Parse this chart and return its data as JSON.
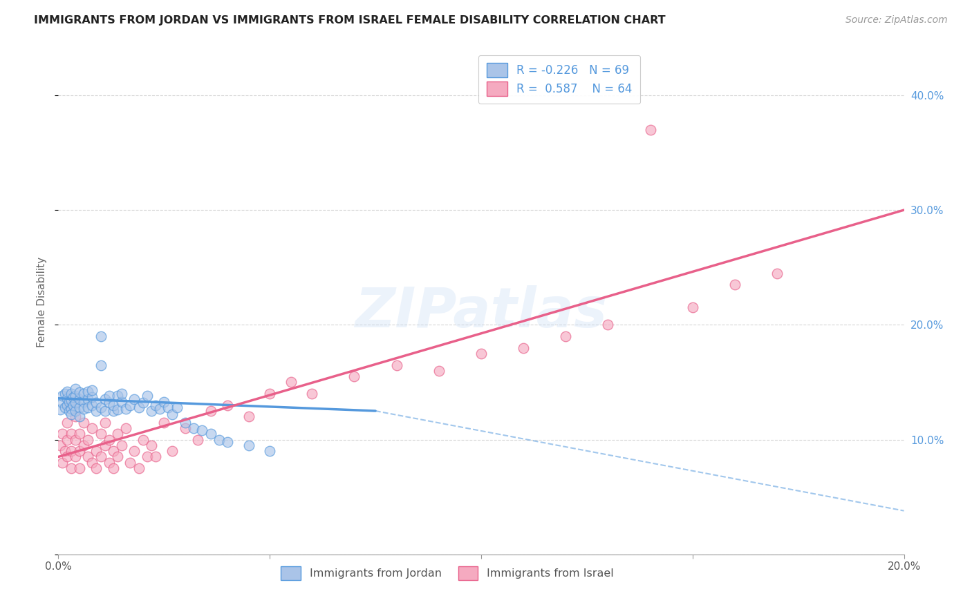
{
  "title": "IMMIGRANTS FROM JORDAN VS IMMIGRANTS FROM ISRAEL FEMALE DISABILITY CORRELATION CHART",
  "source": "Source: ZipAtlas.com",
  "ylabel": "Female Disability",
  "x_min": 0.0,
  "x_max": 0.2,
  "y_min": 0.0,
  "y_max": 0.44,
  "jordan_color": "#aac4e8",
  "israel_color": "#f5aac0",
  "jordan_line_color": "#5599dd",
  "israel_line_color": "#e8608a",
  "jordan_R": -0.226,
  "jordan_N": 69,
  "israel_R": 0.587,
  "israel_N": 64,
  "watermark": "ZIPatlas",
  "background_color": "#ffffff",
  "grid_color": "#cccccc",
  "jordan_scatter_x": [
    0.0005,
    0.001,
    0.001,
    0.0015,
    0.0015,
    0.002,
    0.002,
    0.002,
    0.0025,
    0.0025,
    0.003,
    0.003,
    0.003,
    0.003,
    0.0035,
    0.0035,
    0.004,
    0.004,
    0.004,
    0.004,
    0.005,
    0.005,
    0.005,
    0.005,
    0.006,
    0.006,
    0.006,
    0.007,
    0.007,
    0.007,
    0.008,
    0.008,
    0.008,
    0.009,
    0.009,
    0.01,
    0.01,
    0.01,
    0.011,
    0.011,
    0.012,
    0.012,
    0.013,
    0.013,
    0.014,
    0.014,
    0.015,
    0.015,
    0.016,
    0.017,
    0.018,
    0.019,
    0.02,
    0.021,
    0.022,
    0.023,
    0.024,
    0.025,
    0.026,
    0.027,
    0.028,
    0.03,
    0.032,
    0.034,
    0.036,
    0.038,
    0.04,
    0.045,
    0.05
  ],
  "jordan_scatter_y": [
    0.126,
    0.132,
    0.138,
    0.128,
    0.14,
    0.13,
    0.136,
    0.142,
    0.125,
    0.133,
    0.127,
    0.134,
    0.14,
    0.122,
    0.13,
    0.137,
    0.125,
    0.132,
    0.138,
    0.144,
    0.128,
    0.135,
    0.141,
    0.12,
    0.133,
    0.14,
    0.127,
    0.135,
    0.142,
    0.128,
    0.13,
    0.137,
    0.143,
    0.125,
    0.132,
    0.19,
    0.165,
    0.128,
    0.135,
    0.125,
    0.132,
    0.138,
    0.125,
    0.13,
    0.138,
    0.126,
    0.133,
    0.14,
    0.127,
    0.13,
    0.135,
    0.128,
    0.132,
    0.138,
    0.125,
    0.13,
    0.127,
    0.133,
    0.128,
    0.122,
    0.128,
    0.115,
    0.11,
    0.108,
    0.105,
    0.1,
    0.098,
    0.095,
    0.09
  ],
  "israel_scatter_x": [
    0.0005,
    0.001,
    0.001,
    0.0015,
    0.002,
    0.002,
    0.002,
    0.003,
    0.003,
    0.003,
    0.004,
    0.004,
    0.004,
    0.005,
    0.005,
    0.005,
    0.006,
    0.006,
    0.007,
    0.007,
    0.008,
    0.008,
    0.009,
    0.009,
    0.01,
    0.01,
    0.011,
    0.011,
    0.012,
    0.012,
    0.013,
    0.013,
    0.014,
    0.014,
    0.015,
    0.016,
    0.017,
    0.018,
    0.019,
    0.02,
    0.021,
    0.022,
    0.023,
    0.025,
    0.027,
    0.03,
    0.033,
    0.036,
    0.04,
    0.045,
    0.05,
    0.055,
    0.06,
    0.07,
    0.08,
    0.09,
    0.1,
    0.11,
    0.12,
    0.13,
    0.14,
    0.15,
    0.16,
    0.17
  ],
  "israel_scatter_y": [
    0.095,
    0.08,
    0.105,
    0.09,
    0.1,
    0.085,
    0.115,
    0.09,
    0.105,
    0.075,
    0.1,
    0.085,
    0.12,
    0.09,
    0.105,
    0.075,
    0.095,
    0.115,
    0.085,
    0.1,
    0.08,
    0.11,
    0.09,
    0.075,
    0.105,
    0.085,
    0.095,
    0.115,
    0.08,
    0.1,
    0.09,
    0.075,
    0.105,
    0.085,
    0.095,
    0.11,
    0.08,
    0.09,
    0.075,
    0.1,
    0.085,
    0.095,
    0.085,
    0.115,
    0.09,
    0.11,
    0.1,
    0.125,
    0.13,
    0.12,
    0.14,
    0.15,
    0.14,
    0.155,
    0.165,
    0.16,
    0.175,
    0.18,
    0.19,
    0.2,
    0.37,
    0.215,
    0.235,
    0.245
  ],
  "jordan_line_x0": 0.0,
  "jordan_line_x1": 0.075,
  "jordan_line_dash_x1": 0.2,
  "jordan_line_y_at_0": 0.136,
  "jordan_line_y_at_075": 0.125,
  "jordan_line_y_at_20": 0.038,
  "israel_line_x0": 0.0,
  "israel_line_x1": 0.2,
  "israel_line_y_at_0": 0.085,
  "israel_line_y_at_20": 0.3
}
